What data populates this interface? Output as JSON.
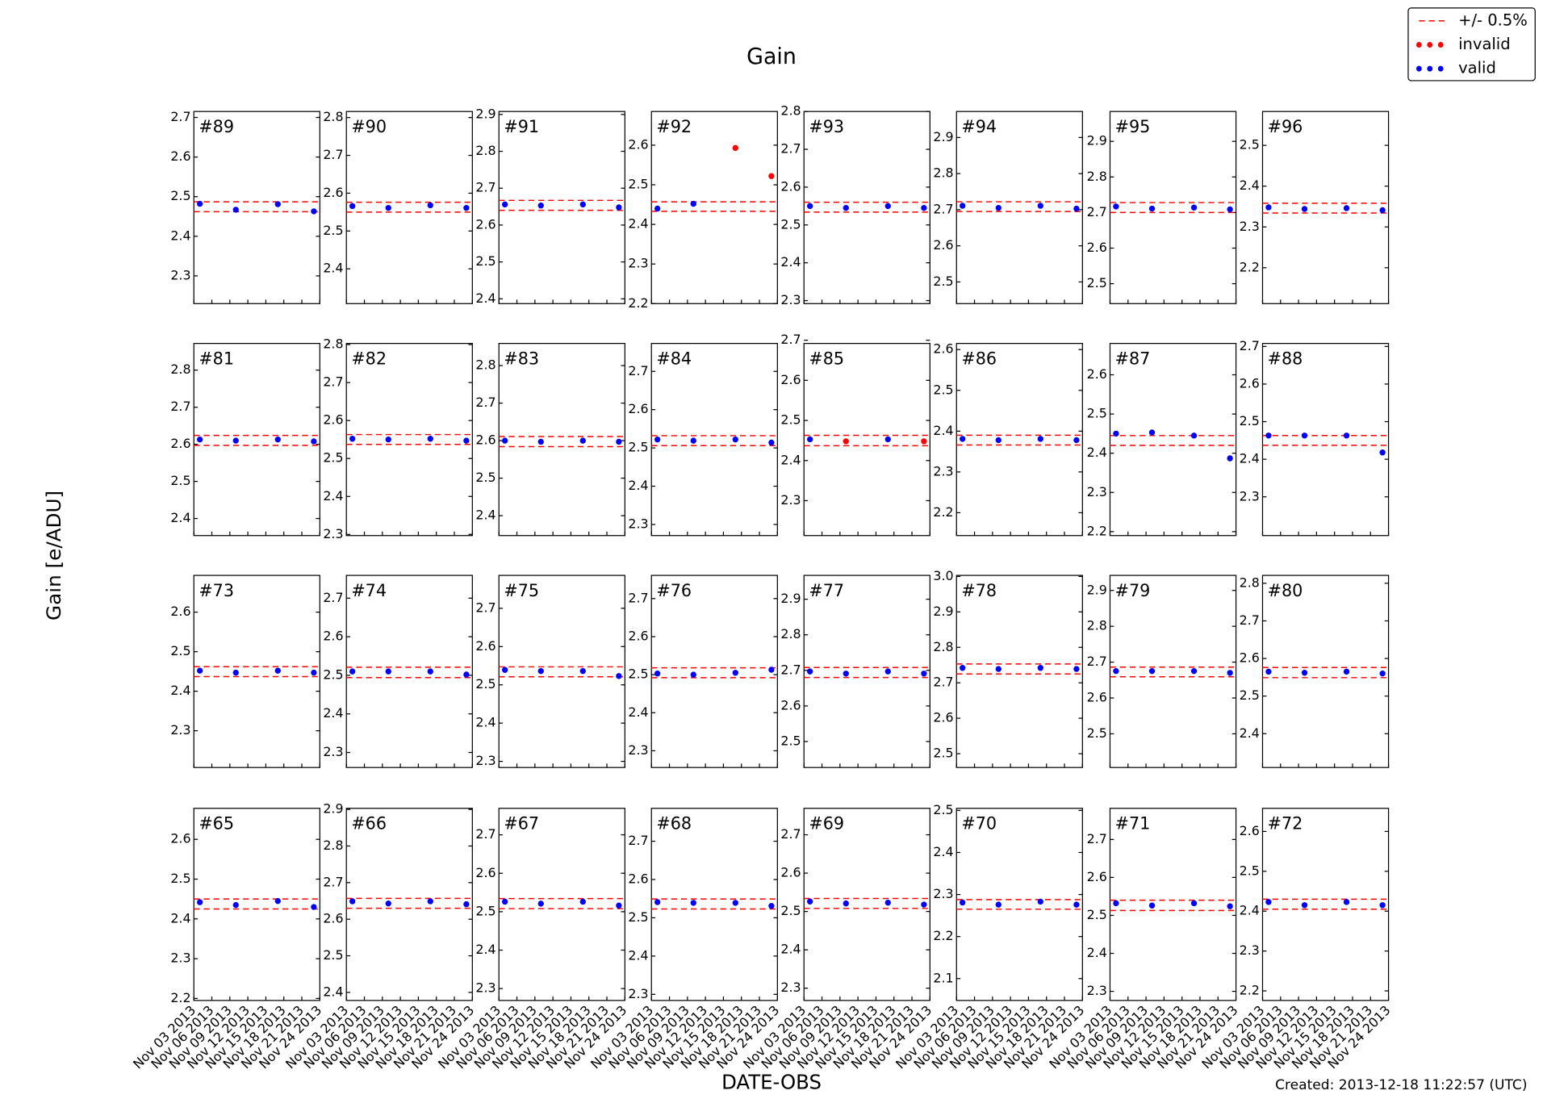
{
  "chart_data": {
    "type": "scatter",
    "title": "Gain",
    "ylabel": "Gain [e/ADU]",
    "xlabel": "DATE-OBS",
    "footer": "Created: 2013-12-18 11:22:57 (UTC)",
    "legend": "upper right",
    "series": [
      {
        "name": "+/- 0.5%",
        "color": "#ff0000"
      },
      {
        "name": "invalid",
        "color": "#ff0000"
      },
      {
        "name": "valid",
        "color": "#0000ff"
      }
    ],
    "x": [
      "Nov 04 2013",
      "Nov 10 2013",
      "Nov 17 2013",
      "Nov 23 2013"
    ],
    "xlim": [
      "Nov 03 2013",
      "Nov 24 2013"
    ],
    "xticks": [
      "Nov 03 2013",
      "Nov 06 2013",
      "Nov 09 2013",
      "Nov 12 2013",
      "Nov 15 2013",
      "Nov 18 2013",
      "Nov 21 2013",
      "Nov 24 2013"
    ],
    "panels": [
      {
        "label": "#89",
        "ylim": [
          2.23,
          2.715
        ],
        "yticks": [
          2.3,
          2.4,
          2.5,
          2.6,
          2.7
        ],
        "band": [
          2.462,
          2.487
        ],
        "valid": [
          2.482,
          2.467,
          2.481,
          2.463
        ]
      },
      {
        "label": "#90",
        "ylim": [
          2.308,
          2.816
        ],
        "yticks": [
          2.4,
          2.5,
          2.6,
          2.7,
          2.8
        ],
        "band": [
          2.55,
          2.576
        ],
        "valid": [
          2.566,
          2.561,
          2.568,
          2.561
        ]
      },
      {
        "label": "#91",
        "ylim": [
          2.387,
          2.908
        ],
        "yticks": [
          2.4,
          2.5,
          2.6,
          2.7,
          2.8,
          2.9
        ],
        "band": [
          2.64,
          2.667
        ],
        "valid": [
          2.656,
          2.653,
          2.656,
          2.648
        ]
      },
      {
        "label": "#92",
        "ylim": [
          2.2,
          2.685
        ],
        "yticks": [
          2.2,
          2.3,
          2.4,
          2.5,
          2.6
        ],
        "band": [
          2.433,
          2.457
        ],
        "valid": [
          2.44,
          2.452,
          null,
          null
        ],
        "invalid": [
          null,
          null,
          2.593,
          2.522
        ]
      },
      {
        "label": "#93",
        "ylim": [
          2.292,
          2.8
        ],
        "yticks": [
          2.3,
          2.4,
          2.5,
          2.6,
          2.7,
          2.8
        ],
        "band": [
          2.534,
          2.56
        ],
        "valid": [
          2.55,
          2.545,
          2.55,
          2.545
        ]
      },
      {
        "label": "#94",
        "ylim": [
          2.44,
          2.972
        ],
        "yticks": [
          2.5,
          2.6,
          2.7,
          2.8,
          2.9
        ],
        "band": [
          2.695,
          2.722
        ],
        "valid": [
          2.711,
          2.705,
          2.711,
          2.703
        ]
      },
      {
        "label": "#95",
        "ylim": [
          2.444,
          2.984
        ],
        "yticks": [
          2.5,
          2.6,
          2.7,
          2.8,
          2.9
        ],
        "band": [
          2.7,
          2.728
        ],
        "valid": [
          2.717,
          2.711,
          2.714,
          2.709
        ]
      },
      {
        "label": "#96",
        "ylim": [
          2.112,
          2.583
        ],
        "yticks": [
          2.2,
          2.3,
          2.4,
          2.5
        ],
        "band": [
          2.334,
          2.358
        ],
        "valid": [
          2.348,
          2.344,
          2.346,
          2.341
        ]
      },
      {
        "label": "#81",
        "ylim": [
          2.354,
          2.872
        ],
        "yticks": [
          2.4,
          2.5,
          2.6,
          2.7,
          2.8
        ],
        "band": [
          2.597,
          2.624
        ],
        "valid": [
          2.613,
          2.61,
          2.613,
          2.608
        ]
      },
      {
        "label": "#82",
        "ylim": [
          2.297,
          2.803
        ],
        "yticks": [
          2.3,
          2.4,
          2.5,
          2.6,
          2.7,
          2.8
        ],
        "band": [
          2.537,
          2.563
        ],
        "valid": [
          2.552,
          2.55,
          2.552,
          2.547
        ]
      },
      {
        "label": "#83",
        "ylim": [
          2.347,
          2.859
        ],
        "yticks": [
          2.4,
          2.5,
          2.6,
          2.7,
          2.8
        ],
        "band": [
          2.584,
          2.611
        ],
        "valid": [
          2.6,
          2.597,
          2.6,
          2.597
        ]
      },
      {
        "label": "#84",
        "ylim": [
          2.271,
          2.773
        ],
        "yticks": [
          2.3,
          2.4,
          2.5,
          2.6,
          2.7
        ],
        "band": [
          2.506,
          2.532
        ],
        "valid": [
          2.522,
          2.519,
          2.522,
          2.514
        ]
      },
      {
        "label": "#85",
        "ylim": [
          2.213,
          2.692
        ],
        "yticks": [
          2.3,
          2.4,
          2.5,
          2.6,
          2.7
        ],
        "band": [
          2.437,
          2.463
        ],
        "valid": [
          2.453,
          null,
          2.453,
          null
        ],
        "invalid": [
          null,
          2.448,
          null,
          2.448
        ]
      },
      {
        "label": "#86",
        "ylim": [
          2.144,
          2.615
        ],
        "yticks": [
          2.2,
          2.3,
          2.4,
          2.5,
          2.6
        ],
        "band": [
          2.366,
          2.39
        ],
        "valid": [
          2.381,
          2.378,
          2.381,
          2.378
        ]
      },
      {
        "label": "#87",
        "ylim": [
          2.19,
          2.68
        ],
        "yticks": [
          2.2,
          2.3,
          2.4,
          2.5,
          2.6
        ],
        "band": [
          2.42,
          2.445
        ],
        "valid": [
          2.45,
          2.453,
          2.445,
          2.387
        ]
      },
      {
        "label": "#88",
        "ylim": [
          2.197,
          2.708
        ],
        "yticks": [
          2.3,
          2.4,
          2.5,
          2.6,
          2.7
        ],
        "band": [
          2.437,
          2.463
        ],
        "valid": [
          2.463,
          2.463,
          2.463,
          2.418
        ]
      },
      {
        "label": "#73",
        "ylim": [
          2.207,
          2.693
        ],
        "yticks": [
          2.3,
          2.4,
          2.5,
          2.6
        ],
        "band": [
          2.437,
          2.462
        ],
        "valid": [
          2.452,
          2.447,
          2.452,
          2.447
        ]
      },
      {
        "label": "#74",
        "ylim": [
          2.261,
          2.759
        ],
        "yticks": [
          2.3,
          2.4,
          2.5,
          2.6,
          2.7
        ],
        "band": [
          2.494,
          2.521
        ],
        "valid": [
          2.51,
          2.51,
          2.51,
          2.502
        ]
      },
      {
        "label": "#75",
        "ylim": [
          2.284,
          2.786
        ],
        "yticks": [
          2.3,
          2.4,
          2.5,
          2.6,
          2.7
        ],
        "band": [
          2.521,
          2.547
        ],
        "valid": [
          2.539,
          2.536,
          2.536,
          2.523
        ]
      },
      {
        "label": "#76",
        "ylim": [
          2.256,
          2.761
        ],
        "yticks": [
          2.3,
          2.4,
          2.5,
          2.6,
          2.7
        ],
        "band": [
          2.492,
          2.518
        ],
        "valid": [
          2.503,
          2.5,
          2.505,
          2.513
        ]
      },
      {
        "label": "#77",
        "ylim": [
          2.427,
          2.967
        ],
        "yticks": [
          2.5,
          2.6,
          2.7,
          2.8,
          2.9
        ],
        "band": [
          2.68,
          2.708
        ],
        "valid": [
          2.697,
          2.691,
          2.697,
          2.691
        ]
      },
      {
        "label": "#78",
        "ylim": [
          2.461,
          3.003
        ],
        "yticks": [
          2.5,
          2.6,
          2.7,
          2.8,
          2.9,
          {
            "value": 3,
            "label": "3.0"
          }
        ],
        "band": [
          2.725,
          2.753
        ],
        "valid": [
          2.742,
          2.739,
          2.742,
          2.739
        ]
      },
      {
        "label": "#79",
        "ylim": [
          2.406,
          2.942
        ],
        "yticks": [
          2.5,
          2.6,
          2.7,
          2.8,
          2.9
        ],
        "band": [
          2.659,
          2.686
        ],
        "valid": [
          2.675,
          2.675,
          2.675,
          2.67
        ]
      },
      {
        "label": "#80",
        "ylim": [
          2.31,
          2.821
        ],
        "yticks": [
          2.4,
          2.5,
          2.6,
          2.7,
          2.8
        ],
        "band": [
          2.549,
          2.576
        ],
        "valid": [
          2.565,
          2.562,
          2.565,
          2.56
        ]
      },
      {
        "label": "#65",
        "ylim": [
          2.195,
          2.678
        ],
        "yticks": [
          2.2,
          2.3,
          2.4,
          2.5,
          2.6
        ],
        "band": [
          2.425,
          2.45
        ],
        "valid": [
          2.442,
          2.435,
          2.445,
          2.43
        ]
      },
      {
        "label": "#66",
        "ylim": [
          2.378,
          2.903
        ],
        "yticks": [
          2.4,
          2.5,
          2.6,
          2.7,
          2.8,
          2.9
        ],
        "band": [
          2.63,
          2.657
        ],
        "valid": [
          2.649,
          2.643,
          2.649,
          2.641
        ]
      },
      {
        "label": "#67",
        "ylim": [
          2.269,
          2.769
        ],
        "yticks": [
          2.3,
          2.4,
          2.5,
          2.6,
          2.7
        ],
        "band": [
          2.508,
          2.534
        ],
        "valid": [
          2.526,
          2.521,
          2.526,
          2.516
        ]
      },
      {
        "label": "#68",
        "ylim": [
          2.284,
          2.786
        ],
        "yticks": [
          2.3,
          2.4,
          2.5,
          2.6,
          2.7
        ],
        "band": [
          2.523,
          2.549
        ],
        "valid": [
          2.541,
          2.539,
          2.539,
          2.531
        ]
      },
      {
        "label": "#69",
        "ylim": [
          2.268,
          2.769
        ],
        "yticks": [
          2.3,
          2.4,
          2.5,
          2.6,
          2.7
        ],
        "band": [
          2.508,
          2.534
        ],
        "valid": [
          2.526,
          2.521,
          2.523,
          2.518
        ]
      },
      {
        "label": "#70",
        "ylim": [
          2.048,
          2.505
        ],
        "yticks": [
          2.1,
          2.2,
          2.3,
          2.4,
          2.5
        ],
        "band": [
          2.265,
          2.288
        ],
        "valid": [
          2.281,
          2.276,
          2.283,
          2.276
        ]
      },
      {
        "label": "#71",
        "ylim": [
          2.276,
          2.782
        ],
        "yticks": [
          2.3,
          2.4,
          2.5,
          2.6,
          2.7
        ],
        "band": [
          2.513,
          2.54
        ],
        "valid": [
          2.532,
          2.526,
          2.532,
          2.524
        ]
      },
      {
        "label": "#72",
        "ylim": [
          2.176,
          2.658
        ],
        "yticks": [
          2.2,
          2.3,
          2.4,
          2.5,
          2.6
        ],
        "band": [
          2.405,
          2.43
        ],
        "valid": [
          2.423,
          2.415,
          2.423,
          2.415
        ]
      }
    ]
  }
}
